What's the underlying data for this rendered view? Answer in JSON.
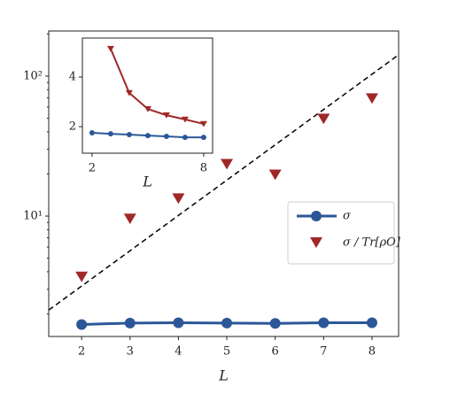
{
  "chart_data": [
    {
      "type": "line",
      "x_label": "L",
      "x": [
        2,
        3,
        4,
        5,
        6,
        7,
        8
      ],
      "series": [
        {
          "name": "σ",
          "color": "#2b5797",
          "marker": "circle",
          "line": true,
          "values": [
            1.68,
            1.72,
            1.73,
            1.72,
            1.71,
            1.73,
            1.73
          ]
        },
        {
          "name": "σ / Tr[ρO]",
          "color": "#a02828",
          "marker": "triangle-down",
          "line": false,
          "values": [
            3.7,
            9.6,
            13.4,
            23.6,
            19.8,
            49.7,
            69.5
          ]
        }
      ],
      "fit": {
        "x": [
          1.32,
          8.55
        ],
        "values": [
          2.13,
          142
        ],
        "color": "#000000",
        "style": "dashed"
      },
      "xlim": [
        1.32,
        8.55
      ],
      "ylim": [
        1.38,
        210
      ],
      "log_y": true,
      "xticks": [
        2,
        3,
        4,
        5,
        6,
        7,
        8
      ],
      "yticks": [
        {
          "value": 10,
          "label": "10¹"
        },
        {
          "value": 100,
          "label": "10²"
        }
      ],
      "yminor": [
        2,
        3,
        4,
        5,
        6,
        7,
        8,
        9,
        20,
        30,
        40,
        50,
        60,
        70,
        80,
        90,
        200
      ],
      "legend": "center right"
    },
    {
      "type": "line",
      "x_label": "L",
      "x": [
        2,
        3,
        4,
        5,
        6,
        7,
        8
      ],
      "series": [
        {
          "color": "#a02828",
          "marker": "triangle-down",
          "line": true,
          "values": [
            null,
            5.14,
            3.36,
            2.71,
            2.46,
            2.29,
            2.11
          ]
        },
        {
          "color": "#2b5797",
          "marker": "circle",
          "line": true,
          "values": [
            1.75,
            1.71,
            1.68,
            1.64,
            1.61,
            1.57,
            1.57
          ]
        }
      ],
      "xlim": [
        1.48,
        8.48
      ],
      "ylim": [
        0.93,
        5.57
      ],
      "log_y": false,
      "xticks": [
        2,
        8
      ],
      "yticks": [
        2,
        4
      ]
    }
  ]
}
